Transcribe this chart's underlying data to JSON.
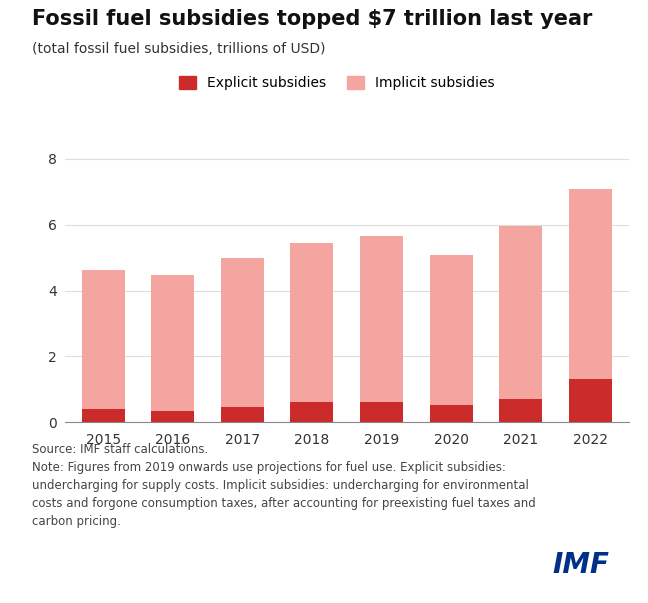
{
  "title": "Fossil fuel subsidies topped $7 trillion last year",
  "subtitle": "(total fossil fuel subsidies, trillions of USD)",
  "years": [
    "2015",
    "2016",
    "2017",
    "2018",
    "2019",
    "2020",
    "2021",
    "2022"
  ],
  "explicit": [
    0.4,
    0.33,
    0.45,
    0.62,
    0.62,
    0.52,
    0.7,
    1.3
  ],
  "total": [
    4.62,
    4.47,
    5.0,
    5.45,
    5.65,
    5.08,
    5.97,
    7.1
  ],
  "explicit_color": "#cc2b2b",
  "implicit_color": "#f5a5a0",
  "background_color": "#ffffff",
  "ylim": [
    0,
    8.8
  ],
  "yticks": [
    0,
    2,
    4,
    6,
    8
  ],
  "legend_explicit": "Explicit subsidies",
  "legend_implicit": "Implicit subsidies",
  "source_text": "Source: IMF staff calculations.\nNote: Figures from 2019 onwards use projections for fuel use. Explicit subsidies:\nundercharging for supply costs. Implicit subsidies: undercharging for environmental\ncosts and forgone consumption taxes, after accounting for preexisting fuel taxes and\ncarbon pricing.",
  "imf_text": "IMF",
  "imf_color": "#003087",
  "title_fontsize": 15,
  "subtitle_fontsize": 10,
  "axis_fontsize": 10,
  "legend_fontsize": 10,
  "source_fontsize": 8.5
}
